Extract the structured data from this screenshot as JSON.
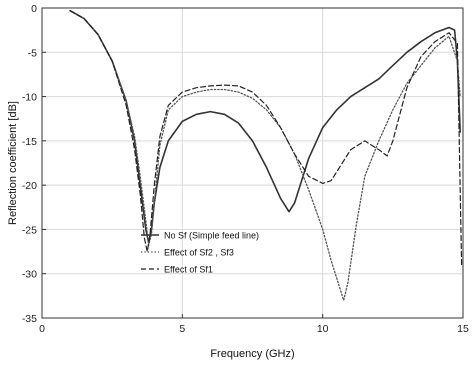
{
  "chart_data": {
    "type": "line",
    "title": "",
    "xlabel": "Frequency (GHz)",
    "ylabel": "Reflection coefficient [dB]",
    "xlim": [
      0,
      15
    ],
    "ylim": [
      -35,
      0
    ],
    "xticks": [
      0,
      5,
      10,
      15
    ],
    "yticks": [
      0,
      -5,
      -10,
      -15,
      -20,
      -25,
      -30,
      -35
    ],
    "xtick_labels": [
      "0",
      "5",
      "10",
      "15"
    ],
    "ytick_labels": [
      "0",
      "-5",
      "-10",
      "-15",
      "-20",
      "-25",
      "-30",
      "-35"
    ],
    "grid": true,
    "legend_position": "bottom-left",
    "series": [
      {
        "name": "No Sf (Simple feed line)",
        "color": "#333333",
        "style": "solid",
        "x": [
          1.0,
          1.5,
          2.0,
          2.5,
          3.0,
          3.3,
          3.5,
          3.7,
          3.8,
          3.9,
          4.0,
          4.2,
          4.5,
          5.0,
          5.5,
          6.0,
          6.5,
          7.0,
          7.5,
          8.0,
          8.5,
          8.8,
          9.0,
          9.5,
          10.0,
          10.5,
          11.0,
          11.5,
          12.0,
          12.5,
          13.0,
          13.5,
          14.0,
          14.5,
          14.7,
          14.8,
          14.9
        ],
        "y": [
          -0.3,
          -1.2,
          -3.0,
          -6.0,
          -10.5,
          -15.0,
          -20.0,
          -25.0,
          -26.5,
          -25.0,
          -22.0,
          -18.0,
          -15.0,
          -12.8,
          -12.0,
          -11.7,
          -12.0,
          -13.0,
          -15.0,
          -18.0,
          -21.5,
          -23.0,
          -22.0,
          -17.0,
          -13.5,
          -11.5,
          -10.0,
          -9.0,
          -8.0,
          -6.5,
          -5.0,
          -3.8,
          -2.8,
          -2.2,
          -2.5,
          -6.0,
          -14.0
        ]
      },
      {
        "name": "Effect of Sf2 , Sf3",
        "color": "#555555",
        "style": "dotted",
        "x": [
          1.0,
          1.5,
          2.0,
          2.5,
          3.0,
          3.3,
          3.5,
          3.7,
          3.8,
          3.9,
          4.0,
          4.2,
          4.5,
          5.0,
          5.5,
          6.0,
          6.5,
          7.0,
          7.5,
          8.0,
          8.5,
          9.0,
          9.5,
          10.0,
          10.3,
          10.6,
          10.75,
          10.9,
          11.2,
          11.5,
          12.0,
          12.5,
          13.0,
          13.5,
          14.0,
          14.5,
          14.8,
          14.9
        ],
        "y": [
          -0.3,
          -1.2,
          -3.0,
          -6.0,
          -10.5,
          -14.5,
          -19.0,
          -24.0,
          -26.8,
          -25.5,
          -22.0,
          -15.5,
          -11.5,
          -10.0,
          -9.5,
          -9.2,
          -9.2,
          -9.5,
          -10.2,
          -11.5,
          -13.5,
          -16.5,
          -20.5,
          -25.0,
          -28.5,
          -31.5,
          -33.0,
          -31.0,
          -24.5,
          -19.0,
          -15.0,
          -11.5,
          -8.5,
          -6.5,
          -4.5,
          -3.2,
          -6.0,
          -10.0
        ]
      },
      {
        "name": "Effect of Sf1",
        "color": "#222222",
        "style": "dashed",
        "x": [
          1.0,
          1.5,
          2.0,
          2.5,
          3.0,
          3.3,
          3.5,
          3.65,
          3.75,
          3.85,
          4.0,
          4.2,
          4.5,
          5.0,
          5.5,
          6.0,
          6.5,
          7.0,
          7.5,
          8.0,
          8.5,
          9.0,
          9.5,
          10.0,
          10.3,
          10.6,
          11.0,
          11.5,
          12.0,
          12.3,
          12.5,
          13.0,
          13.5,
          14.0,
          14.5,
          14.8,
          14.95
        ],
        "y": [
          -0.3,
          -1.2,
          -3.0,
          -6.0,
          -11.0,
          -16.0,
          -21.0,
          -26.0,
          -27.5,
          -25.5,
          -20.0,
          -14.5,
          -11.0,
          -9.5,
          -9.0,
          -8.8,
          -8.7,
          -8.8,
          -9.5,
          -11.0,
          -13.5,
          -16.5,
          -19.0,
          -19.8,
          -19.5,
          -18.0,
          -16.0,
          -15.0,
          -16.0,
          -16.7,
          -15.0,
          -9.0,
          -5.5,
          -3.8,
          -2.8,
          -4.0,
          -29.0
        ]
      }
    ]
  }
}
